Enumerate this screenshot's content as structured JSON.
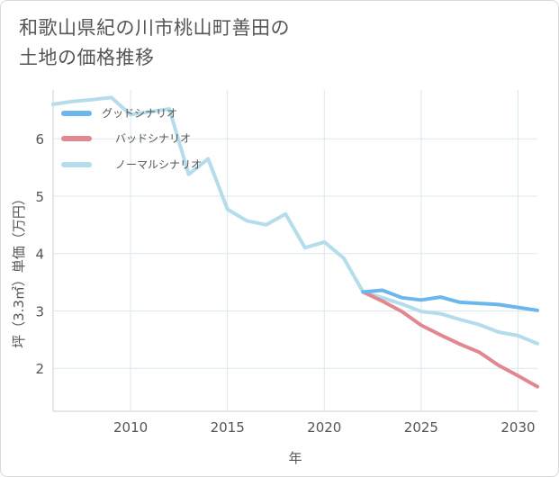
{
  "title_line1": "和歌山県紀の川市桃山町善田の",
  "title_line2": "土地の価格推移",
  "chart_data": {
    "type": "line",
    "xlabel": "年",
    "ylabel": "坪（3.3㎡）単価（万円）",
    "xlim": [
      2006,
      2031
    ],
    "ylim": [
      1.25,
      6.85
    ],
    "xticks": [
      2010,
      2015,
      2020,
      2025,
      2030
    ],
    "yticks": [
      2,
      3,
      4,
      5,
      6
    ],
    "grid": true,
    "legend_position": "top-left",
    "series": [
      {
        "name": "グッドシナリオ",
        "color": "#6cb6ee",
        "x": [
          2022,
          2023,
          2024,
          2025,
          2026,
          2027,
          2028,
          2029,
          2030,
          2031
        ],
        "values": [
          3.33,
          3.36,
          3.23,
          3.19,
          3.24,
          3.15,
          3.13,
          3.11,
          3.06,
          3.01
        ]
      },
      {
        "name": "バッドシナリオ",
        "color": "#e0878f",
        "x": [
          2022,
          2023,
          2024,
          2025,
          2026,
          2027,
          2028,
          2029,
          2030,
          2031
        ],
        "values": [
          3.33,
          3.17,
          2.99,
          2.75,
          2.58,
          2.42,
          2.28,
          2.05,
          1.87,
          1.68
        ]
      },
      {
        "name": "ノーマルシナリオ",
        "color": "#b5dcea",
        "x": [
          2006,
          2007,
          2008,
          2009,
          2010,
          2011,
          2012,
          2013,
          2014,
          2015,
          2016,
          2017,
          2018,
          2019,
          2020,
          2021,
          2022,
          2023,
          2024,
          2025,
          2026,
          2027,
          2028,
          2029,
          2030,
          2031
        ],
        "values": [
          6.6,
          6.65,
          6.68,
          6.72,
          6.42,
          6.47,
          6.52,
          5.38,
          5.65,
          4.77,
          4.57,
          4.5,
          4.69,
          4.1,
          4.2,
          3.92,
          3.33,
          3.23,
          3.12,
          2.99,
          2.95,
          2.85,
          2.76,
          2.63,
          2.57,
          2.43
        ]
      }
    ]
  }
}
